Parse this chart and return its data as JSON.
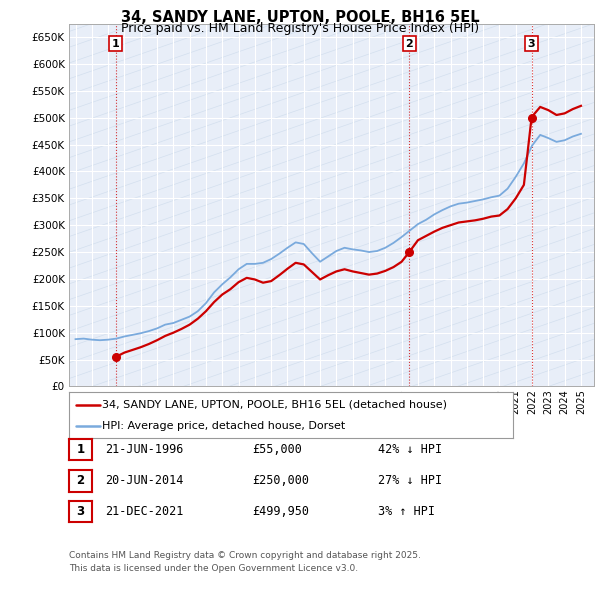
{
  "title": "34, SANDY LANE, UPTON, POOLE, BH16 5EL",
  "subtitle": "Price paid vs. HM Land Registry's House Price Index (HPI)",
  "ylabel_ticks": [
    "£0",
    "£50K",
    "£100K",
    "£150K",
    "£200K",
    "£250K",
    "£300K",
    "£350K",
    "£400K",
    "£450K",
    "£500K",
    "£550K",
    "£600K",
    "£650K"
  ],
  "ytick_values": [
    0,
    50000,
    100000,
    150000,
    200000,
    250000,
    300000,
    350000,
    400000,
    450000,
    500000,
    550000,
    600000,
    650000
  ],
  "xlim_start": 1993.6,
  "xlim_end": 2025.8,
  "ylim_top": 675000,
  "background_color": "#ffffff",
  "plot_bg_color": "#e8eef8",
  "grid_color": "#ffffff",
  "hpi_line_color": "#7aaadd",
  "price_line_color": "#cc0000",
  "vline_color": "#cc0000",
  "transactions": [
    {
      "label": "1",
      "date": 1996.47,
      "price": 55000
    },
    {
      "label": "2",
      "date": 2014.47,
      "price": 250000
    },
    {
      "label": "3",
      "date": 2021.97,
      "price": 499950
    }
  ],
  "hpi_data": [
    [
      1994.0,
      88000
    ],
    [
      1994.25,
      88500
    ],
    [
      1994.5,
      89000
    ],
    [
      1994.75,
      88000
    ],
    [
      1995.0,
      87000
    ],
    [
      1995.25,
      86500
    ],
    [
      1995.5,
      86000
    ],
    [
      1995.75,
      86500
    ],
    [
      1996.0,
      87000
    ],
    [
      1996.25,
      88000
    ],
    [
      1996.5,
      89000
    ],
    [
      1996.75,
      91000
    ],
    [
      1997.0,
      93000
    ],
    [
      1997.25,
      94500
    ],
    [
      1997.5,
      96000
    ],
    [
      1997.75,
      97500
    ],
    [
      1998.0,
      99000
    ],
    [
      1998.25,
      101000
    ],
    [
      1998.5,
      103000
    ],
    [
      1998.75,
      105500
    ],
    [
      1999.0,
      108000
    ],
    [
      1999.25,
      111500
    ],
    [
      1999.5,
      115000
    ],
    [
      1999.75,
      116500
    ],
    [
      2000.0,
      118000
    ],
    [
      2000.25,
      121000
    ],
    [
      2000.5,
      124000
    ],
    [
      2000.75,
      127000
    ],
    [
      2001.0,
      130000
    ],
    [
      2001.25,
      135000
    ],
    [
      2001.5,
      140000
    ],
    [
      2001.75,
      147500
    ],
    [
      2002.0,
      155000
    ],
    [
      2002.25,
      165000
    ],
    [
      2002.5,
      175000
    ],
    [
      2002.75,
      182500
    ],
    [
      2003.0,
      190000
    ],
    [
      2003.25,
      196500
    ],
    [
      2003.5,
      203000
    ],
    [
      2003.75,
      210500
    ],
    [
      2004.0,
      218000
    ],
    [
      2004.25,
      223000
    ],
    [
      2004.5,
      228000
    ],
    [
      2004.75,
      228000
    ],
    [
      2005.0,
      228000
    ],
    [
      2005.25,
      229000
    ],
    [
      2005.5,
      230000
    ],
    [
      2005.75,
      233500
    ],
    [
      2006.0,
      237000
    ],
    [
      2006.25,
      242000
    ],
    [
      2006.5,
      247000
    ],
    [
      2006.75,
      252500
    ],
    [
      2007.0,
      258000
    ],
    [
      2007.25,
      263000
    ],
    [
      2007.5,
      268000
    ],
    [
      2007.75,
      266500
    ],
    [
      2008.0,
      265000
    ],
    [
      2008.25,
      256500
    ],
    [
      2008.5,
      248000
    ],
    [
      2008.75,
      240000
    ],
    [
      2009.0,
      232000
    ],
    [
      2009.25,
      237000
    ],
    [
      2009.5,
      242000
    ],
    [
      2009.75,
      247000
    ],
    [
      2010.0,
      252000
    ],
    [
      2010.25,
      255000
    ],
    [
      2010.5,
      258000
    ],
    [
      2010.75,
      256500
    ],
    [
      2011.0,
      255000
    ],
    [
      2011.25,
      254000
    ],
    [
      2011.5,
      253000
    ],
    [
      2011.75,
      251500
    ],
    [
      2012.0,
      250000
    ],
    [
      2012.25,
      251000
    ],
    [
      2012.5,
      252000
    ],
    [
      2012.75,
      255000
    ],
    [
      2013.0,
      258000
    ],
    [
      2013.25,
      262500
    ],
    [
      2013.5,
      267000
    ],
    [
      2013.75,
      272500
    ],
    [
      2014.0,
      278000
    ],
    [
      2014.25,
      284000
    ],
    [
      2014.5,
      290000
    ],
    [
      2014.75,
      296000
    ],
    [
      2015.0,
      302000
    ],
    [
      2015.25,
      306000
    ],
    [
      2015.5,
      310000
    ],
    [
      2015.75,
      315000
    ],
    [
      2016.0,
      320000
    ],
    [
      2016.25,
      324000
    ],
    [
      2016.5,
      328000
    ],
    [
      2016.75,
      331500
    ],
    [
      2017.0,
      335000
    ],
    [
      2017.25,
      337500
    ],
    [
      2017.5,
      340000
    ],
    [
      2017.75,
      341000
    ],
    [
      2018.0,
      342000
    ],
    [
      2018.25,
      343500
    ],
    [
      2018.5,
      345000
    ],
    [
      2018.75,
      346500
    ],
    [
      2019.0,
      348000
    ],
    [
      2019.25,
      350000
    ],
    [
      2019.5,
      352000
    ],
    [
      2019.75,
      353500
    ],
    [
      2020.0,
      355000
    ],
    [
      2020.25,
      361500
    ],
    [
      2020.5,
      368000
    ],
    [
      2020.75,
      379000
    ],
    [
      2021.0,
      390000
    ],
    [
      2021.25,
      402500
    ],
    [
      2021.5,
      415000
    ],
    [
      2021.75,
      431500
    ],
    [
      2022.0,
      448000
    ],
    [
      2022.25,
      458000
    ],
    [
      2022.5,
      468000
    ],
    [
      2022.75,
      465000
    ],
    [
      2023.0,
      462000
    ],
    [
      2023.25,
      458500
    ],
    [
      2023.5,
      455000
    ],
    [
      2023.75,
      456500
    ],
    [
      2024.0,
      458000
    ],
    [
      2024.25,
      461500
    ],
    [
      2024.5,
      465000
    ],
    [
      2024.75,
      467500
    ],
    [
      2025.0,
      470000
    ]
  ],
  "price_data": [
    [
      1996.47,
      55000
    ],
    [
      1997.0,
      63000
    ],
    [
      1997.5,
      68000
    ],
    [
      1998.0,
      73000
    ],
    [
      1998.5,
      79000
    ],
    [
      1999.0,
      86000
    ],
    [
      1999.5,
      94000
    ],
    [
      2000.0,
      100000
    ],
    [
      2000.5,
      107000
    ],
    [
      2001.0,
      115000
    ],
    [
      2001.5,
      126000
    ],
    [
      2002.0,
      140000
    ],
    [
      2002.5,
      157000
    ],
    [
      2003.0,
      171000
    ],
    [
      2003.5,
      181000
    ],
    [
      2004.0,
      194000
    ],
    [
      2004.5,
      202000
    ],
    [
      2005.0,
      199000
    ],
    [
      2005.5,
      193000
    ],
    [
      2006.0,
      196000
    ],
    [
      2006.5,
      207000
    ],
    [
      2007.0,
      219000
    ],
    [
      2007.5,
      230000
    ],
    [
      2008.0,
      227000
    ],
    [
      2008.5,
      213000
    ],
    [
      2009.0,
      199000
    ],
    [
      2009.5,
      207000
    ],
    [
      2010.0,
      214000
    ],
    [
      2010.5,
      218000
    ],
    [
      2011.0,
      214000
    ],
    [
      2011.5,
      211000
    ],
    [
      2012.0,
      208000
    ],
    [
      2012.5,
      210000
    ],
    [
      2013.0,
      215000
    ],
    [
      2013.5,
      222000
    ],
    [
      2014.0,
      232000
    ],
    [
      2014.47,
      250000
    ],
    [
      2015.0,
      272000
    ],
    [
      2015.5,
      280000
    ],
    [
      2016.0,
      288000
    ],
    [
      2016.5,
      295000
    ],
    [
      2017.0,
      300000
    ],
    [
      2017.5,
      305000
    ],
    [
      2018.0,
      307000
    ],
    [
      2018.5,
      309000
    ],
    [
      2019.0,
      312000
    ],
    [
      2019.5,
      316000
    ],
    [
      2020.0,
      318000
    ],
    [
      2020.5,
      330000
    ],
    [
      2021.0,
      350000
    ],
    [
      2021.5,
      375000
    ],
    [
      2021.97,
      499950
    ],
    [
      2022.0,
      502000
    ],
    [
      2022.5,
      520000
    ],
    [
      2023.0,
      514000
    ],
    [
      2023.5,
      505000
    ],
    [
      2024.0,
      508000
    ],
    [
      2024.5,
      516000
    ],
    [
      2025.0,
      522000
    ]
  ],
  "legend_entries": [
    {
      "label": "34, SANDY LANE, UPTON, POOLE, BH16 5EL (detached house)",
      "color": "#cc0000"
    },
    {
      "label": "HPI: Average price, detached house, Dorset",
      "color": "#7aaadd"
    }
  ],
  "table_rows": [
    {
      "num": "1",
      "date": "21-JUN-1996",
      "price": "£55,000",
      "change": "42% ↓ HPI"
    },
    {
      "num": "2",
      "date": "20-JUN-2014",
      "price": "£250,000",
      "change": "27% ↓ HPI"
    },
    {
      "num": "3",
      "date": "21-DEC-2021",
      "price": "£499,950",
      "change": "3% ↑ HPI"
    }
  ],
  "footer": "Contains HM Land Registry data © Crown copyright and database right 2025.\nThis data is licensed under the Open Government Licence v3.0."
}
